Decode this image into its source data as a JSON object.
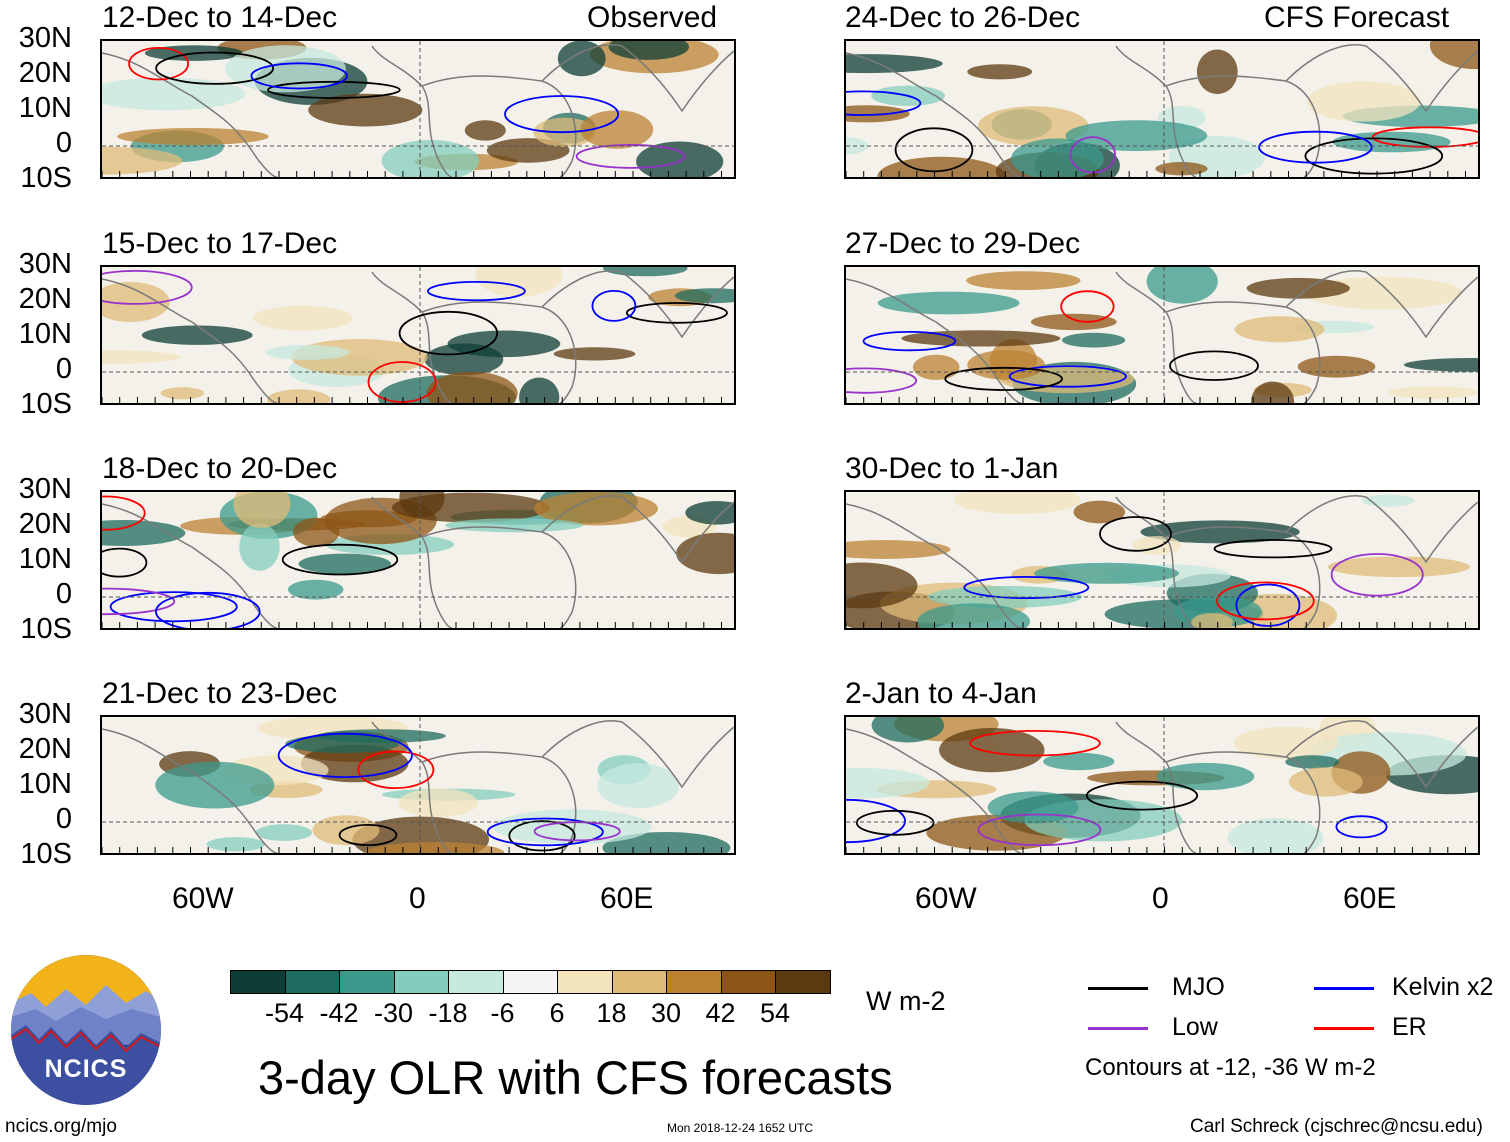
{
  "figure": {
    "title": "3-day OLR with CFS forecasts",
    "observed_label": "Observed",
    "forecast_label": "CFS Forecast",
    "footer_left": "ncics.org/mjo",
    "footer_center": "Mon 2018-12-24 1652 UTC",
    "footer_right": "Carl Schreck (cjschrec@ncsu.edu)",
    "logo_text": "NCICS"
  },
  "axes": {
    "lat_labels": [
      "30N",
      "20N",
      "10N",
      "0",
      "10S"
    ],
    "lon_labels": [
      "60W",
      "0",
      "60E"
    ]
  },
  "panels": [
    {
      "period": "12-Dec to 14-Dec",
      "kind": "observed"
    },
    {
      "period": "15-Dec to 17-Dec",
      "kind": "observed"
    },
    {
      "period": "18-Dec to 20-Dec",
      "kind": "observed"
    },
    {
      "period": "21-Dec to 23-Dec",
      "kind": "observed"
    },
    {
      "period": "24-Dec to 26-Dec",
      "kind": "forecast"
    },
    {
      "period": "27-Dec to 29-Dec",
      "kind": "forecast"
    },
    {
      "period": "30-Dec to 1-Jan",
      "kind": "forecast"
    },
    {
      "period": "2-Jan to 4-Jan",
      "kind": "forecast"
    }
  ],
  "colorbar": {
    "unit": "W m-2",
    "labels": [
      "-54",
      "-42",
      "-30",
      "-18",
      "-6",
      "6",
      "18",
      "30",
      "42",
      "54"
    ],
    "colors": [
      "#0d3d36",
      "#1d6b5f",
      "#3b9a8c",
      "#84cdbd",
      "#c5e8df",
      "#f5f5f5",
      "#f3e3bd",
      "#dfbb78",
      "#bb8232",
      "#8c5515",
      "#5c3a10"
    ]
  },
  "legend": {
    "items": [
      {
        "label": "MJO",
        "color": "#000000"
      },
      {
        "label": "Kelvin x2",
        "color": "#0000ff"
      },
      {
        "label": "Low",
        "color": "#9932cc"
      },
      {
        "label": "ER",
        "color": "#ff0000"
      }
    ],
    "note": "Contours at -12, -36 W m-2"
  }
}
